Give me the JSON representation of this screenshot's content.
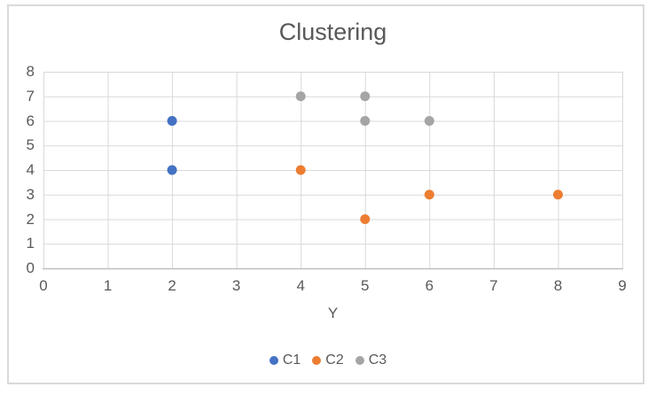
{
  "window": {
    "background": "#ffffff",
    "frame_border_color": "#D9D9D9"
  },
  "chart_data": {
    "type": "scatter",
    "title": "Clustering",
    "xlabel": "Y",
    "ylabel": "",
    "xlim": [
      0,
      9
    ],
    "ylim": [
      0,
      8
    ],
    "xticks": [
      0,
      1,
      2,
      3,
      4,
      5,
      6,
      7,
      8,
      9
    ],
    "yticks": [
      0,
      1,
      2,
      3,
      4,
      5,
      6,
      7,
      8
    ],
    "grid": true,
    "legend_position": "bottom",
    "series": [
      {
        "name": "C1",
        "color": "#4472C4",
        "points": [
          [
            2,
            6
          ],
          [
            2,
            4
          ]
        ]
      },
      {
        "name": "C2",
        "color": "#ED7D31",
        "points": [
          [
            4,
            4
          ],
          [
            5,
            2
          ],
          [
            6,
            3
          ],
          [
            8,
            3
          ]
        ]
      },
      {
        "name": "C3",
        "color": "#A5A5A5",
        "points": [
          [
            4,
            7
          ],
          [
            5,
            7
          ],
          [
            5,
            6
          ],
          [
            6,
            6
          ]
        ]
      }
    ],
    "styles": {
      "grid_color": "#D9D9D9",
      "axis_line_color": "#BFBFBF",
      "text_color": "#595959",
      "title_color": "#595959"
    }
  }
}
